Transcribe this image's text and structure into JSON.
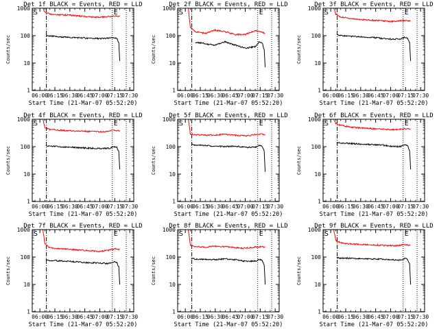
{
  "chart_data": [
    {
      "type": "line",
      "title": "Det 1f BLACK = Events, RED = LLD",
      "xlabel": "Start Time (21-Mar-07 05:52:20)",
      "ylabel": "Counts/sec",
      "x_ticks": [
        "06:00",
        "06:15",
        "06:30",
        "06:45",
        "07:00",
        "07:15",
        "07:30"
      ],
      "y_ticks": [
        "1",
        "10",
        "100",
        "1000"
      ],
      "ylim": [
        1,
        1000
      ],
      "yscale": "log",
      "x_range": [
        "05:52:20",
        "07:34:00"
      ],
      "markers": [
        {
          "label": "S",
          "time": "05:52:20",
          "style": "solid"
        },
        {
          "label": "",
          "time": "06:06:30",
          "style": "dash-dot"
        },
        {
          "label": "E",
          "time": "07:12:30",
          "style": "dotted"
        },
        {
          "label": "",
          "time": "07:26:30",
          "style": "dotted"
        }
      ],
      "series": [
        {
          "name": "RED",
          "color": "#ff0000",
          "x": [
            "06:03",
            "06:05",
            "06:10",
            "06:20",
            "06:30",
            "06:40",
            "06:50",
            "07:00",
            "07:05",
            "07:10",
            "07:15",
            "07:20"
          ],
          "y": [
            1000,
            700,
            620,
            580,
            560,
            520,
            480,
            470,
            480,
            500,
            520,
            500
          ]
        },
        {
          "name": "BLACK",
          "color": "#000000",
          "x": [
            "06:06",
            "06:10",
            "06:20",
            "06:30",
            "06:40",
            "06:50",
            "07:00",
            "07:10",
            "07:14",
            "07:17",
            "07:19",
            "07:20"
          ],
          "y": [
            100,
            96,
            90,
            86,
            84,
            80,
            78,
            80,
            86,
            80,
            55,
            12
          ]
        }
      ]
    },
    {
      "type": "line",
      "title": "Det 2f BLACK = Events, RED = LLD",
      "xlabel": "Start Time (21-Mar-07 05:52:20)",
      "ylabel": "Counts/sec",
      "x_ticks": [
        "06:00",
        "06:15",
        "06:30",
        "06:45",
        "07:00",
        "07:15",
        "07:30"
      ],
      "y_ticks": [
        "1",
        "10",
        "100",
        "1000"
      ],
      "ylim": [
        1,
        1000
      ],
      "yscale": "log",
      "x_range": [
        "05:52:20",
        "07:34:00"
      ],
      "markers": [
        {
          "label": "S",
          "time": "05:52:20",
          "style": "solid"
        },
        {
          "label": "",
          "time": "06:06:30",
          "style": "dash-dot"
        },
        {
          "label": "E",
          "time": "07:12:30",
          "style": "dotted"
        },
        {
          "label": "",
          "time": "07:26:30",
          "style": "dotted"
        }
      ],
      "series": [
        {
          "name": "RED",
          "color": "#ff0000",
          "x": [
            "06:03",
            "06:05",
            "06:10",
            "06:20",
            "06:30",
            "06:40",
            "06:50",
            "07:00",
            "07:05",
            "07:10",
            "07:15",
            "07:20"
          ],
          "y": [
            1000,
            200,
            140,
            120,
            160,
            140,
            110,
            110,
            130,
            150,
            140,
            120
          ]
        },
        {
          "name": "BLACK",
          "color": "#000000",
          "x": [
            "06:10",
            "06:15",
            "06:20",
            "06:30",
            "06:40",
            "06:50",
            "07:00",
            "07:10",
            "07:14",
            "07:17",
            "07:19",
            "07:20"
          ],
          "y": [
            55,
            55,
            50,
            45,
            60,
            45,
            35,
            40,
            60,
            55,
            30,
            7
          ]
        }
      ]
    },
    {
      "type": "line",
      "title": "Det 3f BLACK = Events, RED = LLD",
      "xlabel": "Start Time (21-Mar-07 05:52:20)",
      "ylabel": "Counts/sec",
      "x_ticks": [
        "06:00",
        "06:15",
        "06:30",
        "06:45",
        "07:00",
        "07:15",
        "07:30"
      ],
      "y_ticks": [
        "1",
        "10",
        "100",
        "1000"
      ],
      "ylim": [
        1,
        1000
      ],
      "yscale": "log",
      "x_range": [
        "05:52:20",
        "07:34:00"
      ],
      "markers": [
        {
          "label": "S",
          "time": "05:52:20",
          "style": "solid"
        },
        {
          "label": "",
          "time": "06:06:30",
          "style": "dash-dot"
        },
        {
          "label": "E",
          "time": "07:12:30",
          "style": "dotted"
        },
        {
          "label": "",
          "time": "07:26:30",
          "style": "dotted"
        }
      ],
      "series": [
        {
          "name": "RED",
          "color": "#ff0000",
          "x": [
            "06:03",
            "06:05",
            "06:10",
            "06:20",
            "06:30",
            "06:40",
            "06:50",
            "07:00",
            "07:05",
            "07:10",
            "07:15",
            "07:20"
          ],
          "y": [
            1000,
            600,
            480,
            420,
            390,
            370,
            350,
            330,
            330,
            350,
            360,
            340
          ]
        },
        {
          "name": "BLACK",
          "color": "#000000",
          "x": [
            "06:06",
            "06:10",
            "06:20",
            "06:30",
            "06:40",
            "06:50",
            "07:00",
            "07:10",
            "07:14",
            "07:17",
            "07:19",
            "07:20"
          ],
          "y": [
            110,
            100,
            95,
            90,
            88,
            80,
            75,
            75,
            88,
            80,
            55,
            12
          ]
        }
      ]
    },
    {
      "type": "line",
      "title": "Det 4f BLACK = Events, RED = LLD",
      "xlabel": "Start Time (21-Mar-07 05:52:20)",
      "ylabel": "Counts/sec",
      "x_ticks": [
        "06:00",
        "06:15",
        "06:30",
        "06:45",
        "07:00",
        "07:15",
        "07:30"
      ],
      "y_ticks": [
        "1",
        "10",
        "100",
        "1000"
      ],
      "ylim": [
        1,
        1000
      ],
      "yscale": "log",
      "x_range": [
        "05:52:20",
        "07:34:00"
      ],
      "markers": [
        {
          "label": "S",
          "time": "05:52:20",
          "style": "solid"
        },
        {
          "label": "",
          "time": "06:06:30",
          "style": "dash-dot"
        },
        {
          "label": "E",
          "time": "07:12:30",
          "style": "dotted"
        },
        {
          "label": "",
          "time": "07:26:30",
          "style": "dotted"
        }
      ],
      "series": [
        {
          "name": "RED",
          "color": "#ff0000",
          "x": [
            "06:03",
            "06:05",
            "06:10",
            "06:20",
            "06:30",
            "06:40",
            "06:50",
            "07:00",
            "07:05",
            "07:10",
            "07:15",
            "07:20"
          ],
          "y": [
            1000,
            500,
            420,
            400,
            380,
            370,
            360,
            350,
            360,
            380,
            400,
            380
          ]
        },
        {
          "name": "BLACK",
          "color": "#000000",
          "x": [
            "06:06",
            "06:10",
            "06:20",
            "06:30",
            "06:40",
            "06:50",
            "07:00",
            "07:10",
            "07:14",
            "07:17",
            "07:19",
            "07:20"
          ],
          "y": [
            110,
            105,
            100,
            95,
            92,
            88,
            85,
            88,
            100,
            95,
            65,
            15
          ]
        }
      ]
    },
    {
      "type": "line",
      "title": "Det 5f BLACK = Events, RED = LLD",
      "xlabel": "Start Time (21-Mar-07 05:52:20)",
      "ylabel": "Counts/sec",
      "x_ticks": [
        "06:00",
        "06:15",
        "06:30",
        "06:45",
        "07:00",
        "07:15",
        "07:30"
      ],
      "y_ticks": [
        "1",
        "10",
        "100",
        "1000"
      ],
      "ylim": [
        1,
        1000
      ],
      "yscale": "log",
      "x_range": [
        "05:52:20",
        "07:34:00"
      ],
      "markers": [
        {
          "label": "S",
          "time": "05:52:20",
          "style": "solid"
        },
        {
          "label": "",
          "time": "06:06:30",
          "style": "dash-dot"
        },
        {
          "label": "E",
          "time": "07:12:30",
          "style": "dotted"
        },
        {
          "label": "",
          "time": "07:26:30",
          "style": "dotted"
        }
      ],
      "series": [
        {
          "name": "RED",
          "color": "#ff0000",
          "x": [
            "06:03",
            "06:05",
            "06:10",
            "06:20",
            "06:30",
            "06:40",
            "06:50",
            "07:00",
            "07:05",
            "07:10",
            "07:15",
            "07:20"
          ],
          "y": [
            1000,
            300,
            270,
            260,
            270,
            280,
            260,
            250,
            260,
            280,
            290,
            280
          ]
        },
        {
          "name": "BLACK",
          "color": "#000000",
          "x": [
            "06:06",
            "06:10",
            "06:20",
            "06:30",
            "06:40",
            "06:50",
            "07:00",
            "07:10",
            "07:14",
            "07:17",
            "07:19",
            "07:20"
          ],
          "y": [
            120,
            115,
            110,
            105,
            100,
            105,
            95,
            95,
            110,
            100,
            70,
            12
          ]
        }
      ]
    },
    {
      "type": "line",
      "title": "Det 6f BLACK = Events, RED = LLD",
      "xlabel": "Start Time (21-Mar-07 05:52:20)",
      "ylabel": "Counts/sec",
      "x_ticks": [
        "06:00",
        "06:15",
        "06:30",
        "06:45",
        "07:00",
        "07:15",
        "07:30"
      ],
      "y_ticks": [
        "1",
        "10",
        "100",
        "1000"
      ],
      "ylim": [
        1,
        1000
      ],
      "yscale": "log",
      "x_range": [
        "05:52:20",
        "07:34:00"
      ],
      "markers": [
        {
          "label": "S",
          "time": "05:52:20",
          "style": "solid"
        },
        {
          "label": "",
          "time": "06:06:30",
          "style": "dash-dot"
        },
        {
          "label": "E",
          "time": "07:12:30",
          "style": "dotted"
        },
        {
          "label": "",
          "time": "07:26:30",
          "style": "dotted"
        }
      ],
      "series": [
        {
          "name": "RED",
          "color": "#ff0000",
          "x": [
            "06:03",
            "06:05",
            "06:10",
            "06:20",
            "06:30",
            "06:40",
            "06:50",
            "07:00",
            "07:05",
            "07:10",
            "07:15",
            "07:20"
          ],
          "y": [
            1000,
            700,
            600,
            520,
            480,
            460,
            440,
            420,
            420,
            440,
            460,
            430
          ]
        },
        {
          "name": "BLACK",
          "color": "#000000",
          "x": [
            "06:06",
            "06:10",
            "06:20",
            "06:30",
            "06:40",
            "06:50",
            "07:00",
            "07:10",
            "07:14",
            "07:17",
            "07:19",
            "07:20"
          ],
          "y": [
            140,
            135,
            130,
            125,
            120,
            115,
            105,
            100,
            120,
            110,
            70,
            15
          ]
        }
      ]
    },
    {
      "type": "line",
      "title": "Det 7f BLACK = Events, RED = LLD",
      "xlabel": "Start Time (21-Mar-07 05:52:20)",
      "ylabel": "Counts/sec",
      "x_ticks": [
        "06:00",
        "06:15",
        "06:30",
        "06:45",
        "07:00",
        "07:15",
        "07:30"
      ],
      "y_ticks": [
        "1",
        "10",
        "100",
        "1000"
      ],
      "ylim": [
        1,
        1000
      ],
      "yscale": "log",
      "x_range": [
        "05:52:20",
        "07:34:00"
      ],
      "markers": [
        {
          "label": "S",
          "time": "05:52:20",
          "style": "solid"
        },
        {
          "label": "",
          "time": "06:06:30",
          "style": "dash-dot"
        },
        {
          "label": "E",
          "time": "07:12:30",
          "style": "dotted"
        },
        {
          "label": "",
          "time": "07:26:30",
          "style": "dotted"
        }
      ],
      "series": [
        {
          "name": "RED",
          "color": "#ff0000",
          "x": [
            "06:03",
            "06:05",
            "06:10",
            "06:20",
            "06:30",
            "06:40",
            "06:50",
            "07:00",
            "07:05",
            "07:10",
            "07:15",
            "07:20"
          ],
          "y": [
            1000,
            300,
            220,
            200,
            190,
            180,
            170,
            160,
            170,
            180,
            200,
            190
          ]
        },
        {
          "name": "BLACK",
          "color": "#000000",
          "x": [
            "06:06",
            "06:10",
            "06:20",
            "06:30",
            "06:40",
            "06:50",
            "07:00",
            "07:10",
            "07:14",
            "07:17",
            "07:19",
            "07:20"
          ],
          "y": [
            80,
            75,
            72,
            70,
            65,
            62,
            60,
            58,
            68,
            62,
            45,
            10
          ]
        }
      ]
    },
    {
      "type": "line",
      "title": "Det 8f BLACK = Events, RED = LLD",
      "xlabel": "Start Time (21-Mar-07 05:52:20)",
      "ylabel": "Counts/sec",
      "x_ticks": [
        "06:00",
        "06:15",
        "06:30",
        "06:45",
        "07:00",
        "07:15",
        "07:30"
      ],
      "y_ticks": [
        "1",
        "10",
        "100",
        "1000"
      ],
      "ylim": [
        1,
        1000
      ],
      "yscale": "log",
      "x_range": [
        "05:52:20",
        "07:34:00"
      ],
      "markers": [
        {
          "label": "S",
          "time": "05:52:20",
          "style": "solid"
        },
        {
          "label": "",
          "time": "06:06:30",
          "style": "dash-dot"
        },
        {
          "label": "E",
          "time": "07:12:30",
          "style": "dotted"
        },
        {
          "label": "",
          "time": "07:26:30",
          "style": "dotted"
        }
      ],
      "series": [
        {
          "name": "RED",
          "color": "#ff0000",
          "x": [
            "06:03",
            "06:05",
            "06:10",
            "06:20",
            "06:30",
            "06:40",
            "06:50",
            "07:00",
            "07:05",
            "07:10",
            "07:15",
            "07:20"
          ],
          "y": [
            1000,
            280,
            240,
            230,
            250,
            240,
            220,
            210,
            220,
            230,
            240,
            230
          ]
        },
        {
          "name": "BLACK",
          "color": "#000000",
          "x": [
            "06:06",
            "06:10",
            "06:20",
            "06:30",
            "06:40",
            "06:50",
            "07:00",
            "07:10",
            "07:14",
            "07:17",
            "07:19",
            "07:20"
          ],
          "y": [
            90,
            85,
            82,
            80,
            85,
            80,
            70,
            70,
            82,
            75,
            50,
            10
          ]
        }
      ]
    },
    {
      "type": "line",
      "title": "Det 9f BLACK = Events, RED = LLD",
      "xlabel": "Start Time (21-Mar-07 05:52:20)",
      "ylabel": "Counts/sec",
      "x_ticks": [
        "06:00",
        "06:15",
        "06:30",
        "06:45",
        "07:00",
        "07:15",
        "07:30"
      ],
      "y_ticks": [
        "1",
        "10",
        "100",
        "1000"
      ],
      "ylim": [
        1,
        1000
      ],
      "yscale": "log",
      "x_range": [
        "05:52:20",
        "07:34:00"
      ],
      "markers": [
        {
          "label": "S",
          "time": "05:52:20",
          "style": "solid"
        },
        {
          "label": "",
          "time": "06:06:30",
          "style": "dash-dot"
        },
        {
          "label": "E",
          "time": "07:12:30",
          "style": "dotted"
        },
        {
          "label": "",
          "time": "07:26:30",
          "style": "dotted"
        }
      ],
      "series": [
        {
          "name": "RED",
          "color": "#ff0000",
          "x": [
            "06:03",
            "06:05",
            "06:10",
            "06:20",
            "06:30",
            "06:40",
            "06:50",
            "07:00",
            "07:05",
            "07:10",
            "07:15",
            "07:20"
          ],
          "y": [
            1000,
            400,
            330,
            300,
            290,
            280,
            270,
            260,
            260,
            270,
            280,
            270
          ]
        },
        {
          "name": "BLACK",
          "color": "#000000",
          "x": [
            "06:06",
            "06:10",
            "06:20",
            "06:30",
            "06:40",
            "06:50",
            "07:00",
            "07:10",
            "07:14",
            "07:17",
            "07:19",
            "07:20"
          ],
          "y": [
            95,
            92,
            90,
            88,
            86,
            84,
            80,
            78,
            90,
            82,
            55,
            10
          ]
        }
      ]
    }
  ]
}
